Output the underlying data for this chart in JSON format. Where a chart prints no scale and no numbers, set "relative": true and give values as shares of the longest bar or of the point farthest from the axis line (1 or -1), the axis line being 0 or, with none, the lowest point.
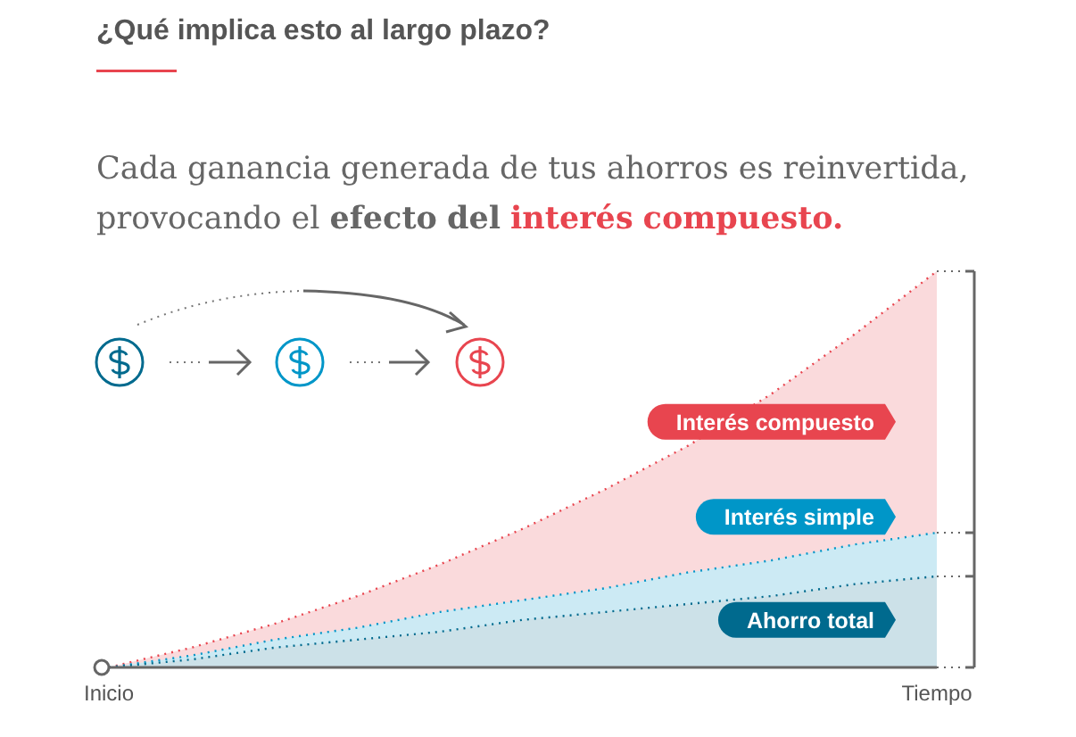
{
  "chart_data": {
    "type": "area",
    "relative": true,
    "title": "¿Qué implica esto al largo plazo?",
    "subtitle": "Cada ganancia generada de tus ahorros es reinvertida, provocando el efecto del interés compuesto.",
    "categories": [
      "Inicio",
      null,
      null,
      null,
      null,
      null,
      null,
      null,
      null,
      null,
      "Tiempo"
    ],
    "series": [
      {
        "name": "Interés compuesto",
        "color": "#e8454f",
        "values": [
          0,
          0.05,
          0.11,
          0.18,
          0.26,
          0.35,
          0.45,
          0.56,
          0.69,
          0.84,
          1
        ]
      },
      {
        "name": "Interés simple",
        "color": "#0096c8",
        "values": [
          0,
          0.03,
          0.07,
          0.1,
          0.14,
          0.17,
          0.2,
          0.24,
          0.27,
          0.31,
          0.34
        ]
      },
      {
        "name": "Ahorro total",
        "color": "#006a8e",
        "values": [
          0,
          0.02,
          0.05,
          0.07,
          0.09,
          0.12,
          0.14,
          0.16,
          0.18,
          0.21,
          0.23
        ]
      }
    ]
  }
}
